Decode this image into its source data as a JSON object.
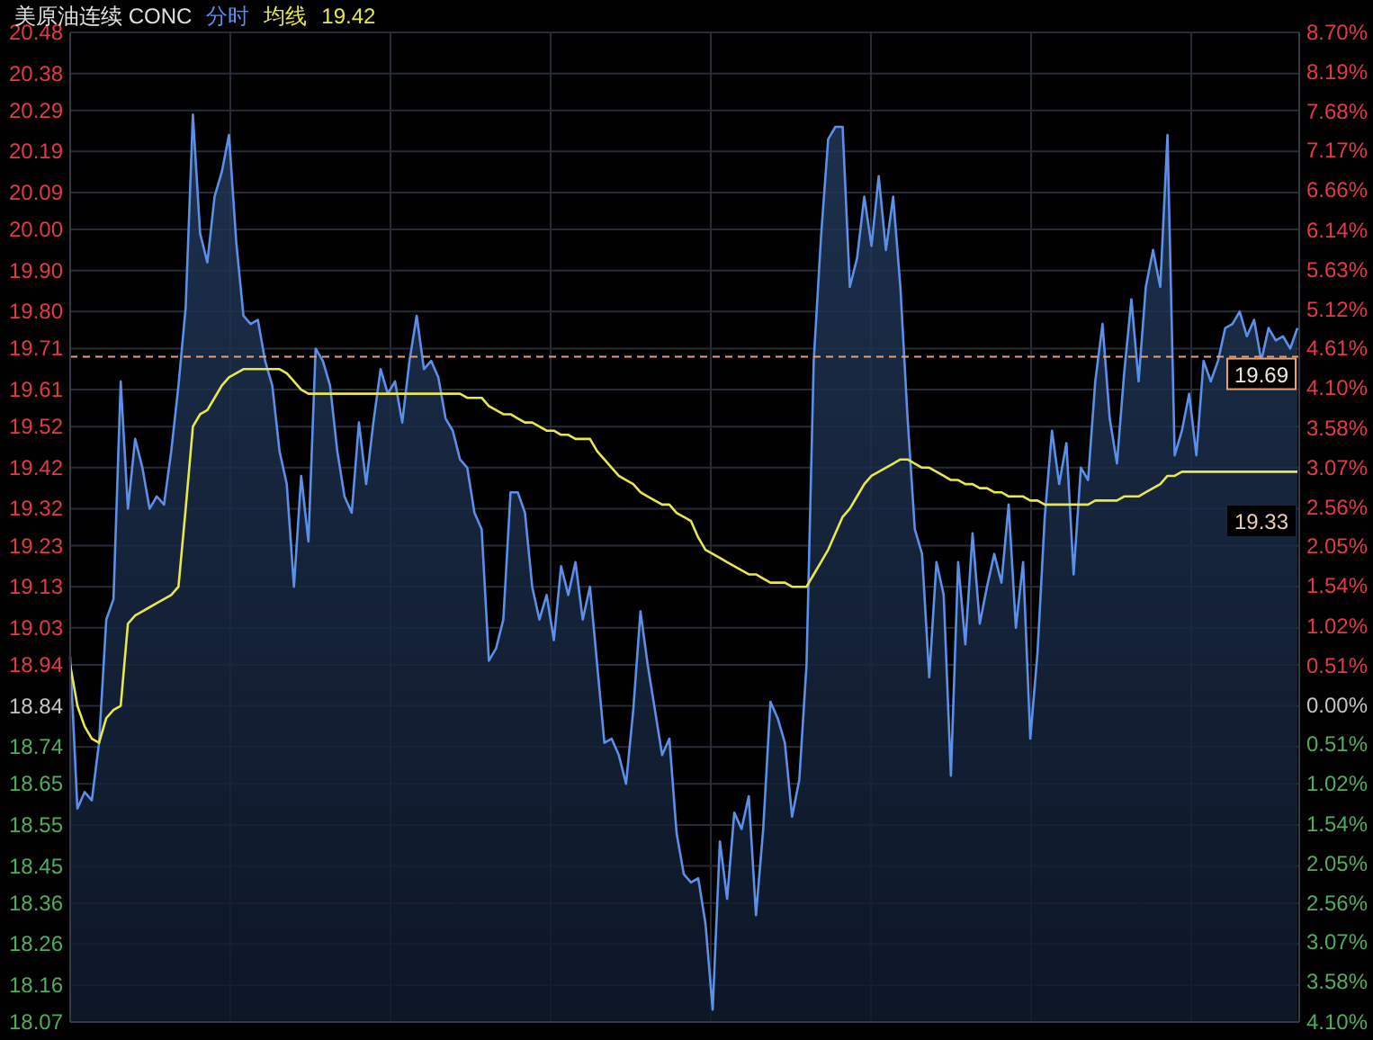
{
  "chart_data": {
    "type": "line",
    "title": "美原油连续 CONC",
    "grid": true,
    "tick_labels": "y",
    "categories": [
      null,
      null,
      null,
      null,
      null,
      null,
      null,
      null,
      null,
      null,
      null,
      null,
      null,
      null,
      null,
      null,
      null,
      null,
      null,
      null,
      null,
      null,
      null,
      null,
      null,
      null,
      null,
      null,
      null,
      null,
      null,
      null,
      null,
      null,
      null,
      null,
      null,
      null,
      null,
      null,
      null,
      null,
      null,
      null,
      null,
      null,
      null,
      null,
      null,
      null,
      null,
      null,
      null,
      null,
      null,
      null,
      null,
      null,
      null,
      null,
      null,
      null,
      null,
      null,
      null,
      null,
      null,
      null,
      null,
      null,
      null,
      null,
      null,
      null,
      null,
      null,
      null,
      null,
      null,
      null,
      null,
      null,
      null,
      null,
      null,
      null,
      null,
      null,
      null,
      null,
      null,
      null,
      null,
      null,
      null,
      null,
      null,
      null,
      null,
      null,
      null,
      null,
      null,
      null,
      null,
      null,
      null,
      null,
      null,
      null,
      null,
      null,
      null,
      null,
      null,
      null,
      null,
      null,
      null,
      null,
      null,
      null,
      null,
      null,
      null,
      null,
      null,
      null,
      null,
      null,
      null,
      null,
      null,
      null,
      null,
      null,
      null,
      null,
      null,
      null,
      null,
      null,
      null,
      null,
      null,
      null,
      null,
      null,
      null,
      null,
      null,
      null,
      null,
      null,
      null,
      null,
      null,
      null,
      null,
      null,
      null,
      null,
      null,
      null,
      null,
      null,
      null,
      null,
      null,
      null,
      null
    ],
    "ylim": [
      18.07,
      20.48
    ],
    "yticks": [
      {
        "value": 20.48,
        "label": "20.48"
      },
      {
        "value": 20.38,
        "label": "20.38"
      },
      {
        "value": 20.29,
        "label": "20.29"
      },
      {
        "value": 20.19,
        "label": "20.19"
      },
      {
        "value": 20.09,
        "label": "20.09"
      },
      {
        "value": 20.0,
        "label": "20.00"
      },
      {
        "value": 19.9,
        "label": "19.90"
      },
      {
        "value": 19.8,
        "label": "19.80"
      },
      {
        "value": 19.71,
        "label": "19.71"
      },
      {
        "value": 19.61,
        "label": "19.61"
      },
      {
        "value": 19.52,
        "label": "19.52"
      },
      {
        "value": 19.42,
        "label": "19.42"
      },
      {
        "value": 19.32,
        "label": "19.32"
      },
      {
        "value": 19.23,
        "label": "19.23"
      },
      {
        "value": 19.13,
        "label": "19.13"
      },
      {
        "value": 19.03,
        "label": "19.03"
      },
      {
        "value": 18.94,
        "label": "18.94"
      },
      {
        "value": 18.84,
        "label": "18.84"
      },
      {
        "value": 18.74,
        "label": "18.74"
      },
      {
        "value": 18.65,
        "label": "18.65"
      },
      {
        "value": 18.55,
        "label": "18.55"
      },
      {
        "value": 18.45,
        "label": "18.45"
      },
      {
        "value": 18.36,
        "label": "18.36"
      },
      {
        "value": 18.26,
        "label": "18.26"
      },
      {
        "value": 18.16,
        "label": "18.16"
      },
      {
        "value": 18.07,
        "label": "18.07"
      }
    ],
    "y2lim": [
      -4.1,
      8.7
    ],
    "y2ticks": [
      {
        "value": 8.7,
        "label": "8.70%"
      },
      {
        "value": 8.19,
        "label": "8.19%"
      },
      {
        "value": 7.68,
        "label": "7.68%"
      },
      {
        "value": 7.17,
        "label": "7.17%"
      },
      {
        "value": 6.66,
        "label": "6.66%"
      },
      {
        "value": 6.14,
        "label": "6.14%"
      },
      {
        "value": 5.63,
        "label": "5.63%"
      },
      {
        "value": 5.12,
        "label": "5.12%"
      },
      {
        "value": 4.61,
        "label": "4.61%"
      },
      {
        "value": 4.1,
        "label": "4.10%"
      },
      {
        "value": 3.58,
        "label": "3.58%"
      },
      {
        "value": 3.07,
        "label": "3.07%"
      },
      {
        "value": 2.56,
        "label": "2.56%"
      },
      {
        "value": 2.05,
        "label": "2.05%"
      },
      {
        "value": 1.54,
        "label": "1.54%"
      },
      {
        "value": 1.02,
        "label": "1.02%"
      },
      {
        "value": 0.51,
        "label": "0.51%"
      },
      {
        "value": 0.0,
        "label": "0.00%"
      },
      {
        "value": -0.51,
        "label": "0.51%"
      },
      {
        "value": -1.02,
        "label": "1.02%"
      },
      {
        "value": -1.54,
        "label": "1.54%"
      },
      {
        "value": -2.05,
        "label": "2.05%"
      },
      {
        "value": -2.56,
        "label": "2.56%"
      },
      {
        "value": -3.07,
        "label": "3.07%"
      },
      {
        "value": -3.58,
        "label": "3.58%"
      },
      {
        "value": -4.1,
        "label": "4.10%"
      }
    ],
    "ref_lines": [
      {
        "axis": "y",
        "value": 19.69,
        "label": "19.69",
        "color": "#e8a070",
        "line_style": "dashed"
      }
    ],
    "annotations": [
      "19.42",
      "19.33"
    ],
    "series": [
      {
        "name": "分时",
        "type": "area",
        "color": "#5b8fe8",
        "values": [
          18.96,
          18.59,
          18.63,
          18.61,
          18.75,
          19.05,
          19.1,
          19.63,
          19.32,
          19.49,
          19.42,
          19.32,
          19.35,
          19.33,
          19.46,
          19.62,
          19.81,
          20.28,
          19.99,
          19.92,
          20.08,
          20.14,
          20.23,
          19.97,
          19.79,
          19.77,
          19.78,
          19.68,
          19.62,
          19.46,
          19.38,
          19.13,
          19.4,
          19.24,
          19.71,
          19.68,
          19.62,
          19.46,
          19.35,
          19.31,
          19.53,
          19.38,
          19.53,
          19.66,
          19.6,
          19.63,
          19.53,
          19.68,
          19.79,
          19.66,
          19.68,
          19.64,
          19.54,
          19.51,
          19.44,
          19.42,
          19.31,
          19.27,
          18.95,
          18.98,
          19.05,
          19.36,
          19.36,
          19.31,
          19.13,
          19.05,
          19.11,
          19.0,
          19.18,
          19.11,
          19.19,
          19.05,
          19.13,
          18.94,
          18.75,
          18.76,
          18.72,
          18.65,
          18.83,
          19.07,
          18.94,
          18.83,
          18.72,
          18.76,
          18.53,
          18.43,
          18.41,
          18.42,
          18.31,
          18.1,
          18.51,
          18.37,
          18.58,
          18.54,
          18.62,
          18.33,
          18.54,
          18.85,
          18.81,
          18.75,
          18.57,
          18.66,
          18.94,
          19.68,
          19.98,
          20.22,
          20.25,
          20.25,
          19.86,
          19.93,
          20.08,
          19.96,
          20.13,
          19.95,
          20.08,
          19.86,
          19.54,
          19.27,
          19.21,
          18.91,
          19.19,
          19.11,
          18.67,
          19.19,
          18.99,
          19.26,
          19.04,
          19.13,
          19.21,
          19.14,
          19.33,
          19.03,
          19.19,
          18.76,
          18.97,
          19.3,
          19.51,
          19.38,
          19.48,
          19.16,
          19.42,
          19.39,
          19.63,
          19.77,
          19.54,
          19.43,
          19.65,
          19.83,
          19.63,
          19.86,
          19.95,
          19.86,
          20.23,
          19.45,
          19.51,
          19.6,
          19.45,
          19.68,
          19.63,
          19.68,
          19.76,
          19.77,
          19.8,
          19.74,
          19.78,
          19.68,
          19.76,
          19.73,
          19.74,
          19.71,
          19.76
        ]
      },
      {
        "name": "均线",
        "color": "#e8e84a",
        "values": [
          18.94,
          18.84,
          18.79,
          18.76,
          18.75,
          18.81,
          18.83,
          18.84,
          19.04,
          19.06,
          19.07,
          19.08,
          19.09,
          19.1,
          19.11,
          19.13,
          19.32,
          19.52,
          19.55,
          19.56,
          19.59,
          19.62,
          19.64,
          19.65,
          19.66,
          19.66,
          19.66,
          19.66,
          19.66,
          19.66,
          19.65,
          19.63,
          19.61,
          19.6,
          19.6,
          19.6,
          19.6,
          19.6,
          19.6,
          19.6,
          19.6,
          19.6,
          19.6,
          19.6,
          19.6,
          19.6,
          19.6,
          19.6,
          19.6,
          19.6,
          19.6,
          19.6,
          19.6,
          19.6,
          19.6,
          19.59,
          19.59,
          19.59,
          19.57,
          19.56,
          19.55,
          19.55,
          19.54,
          19.53,
          19.53,
          19.52,
          19.51,
          19.51,
          19.5,
          19.5,
          19.49,
          19.49,
          19.49,
          19.46,
          19.44,
          19.42,
          19.4,
          19.39,
          19.38,
          19.36,
          19.35,
          19.34,
          19.33,
          19.33,
          19.31,
          19.3,
          19.29,
          19.25,
          19.22,
          19.21,
          19.2,
          19.19,
          19.18,
          19.17,
          19.16,
          19.16,
          19.15,
          19.14,
          19.14,
          19.14,
          19.13,
          19.13,
          19.13,
          19.16,
          19.19,
          19.22,
          19.26,
          19.3,
          19.32,
          19.35,
          19.38,
          19.4,
          19.41,
          19.42,
          19.43,
          19.44,
          19.44,
          19.43,
          19.42,
          19.42,
          19.41,
          19.4,
          19.39,
          19.39,
          19.38,
          19.38,
          19.37,
          19.37,
          19.36,
          19.36,
          19.35,
          19.35,
          19.35,
          19.34,
          19.34,
          19.33,
          19.33,
          19.33,
          19.33,
          19.33,
          19.33,
          19.33,
          19.34,
          19.34,
          19.34,
          19.34,
          19.35,
          19.35,
          19.35,
          19.36,
          19.37,
          19.38,
          19.4,
          19.4,
          19.41,
          19.41,
          19.41,
          19.41,
          19.41,
          19.41,
          19.41,
          19.41,
          19.41,
          19.41,
          19.41,
          19.41,
          19.41,
          19.41,
          19.41,
          19.41,
          19.41
        ]
      }
    ]
  }
}
